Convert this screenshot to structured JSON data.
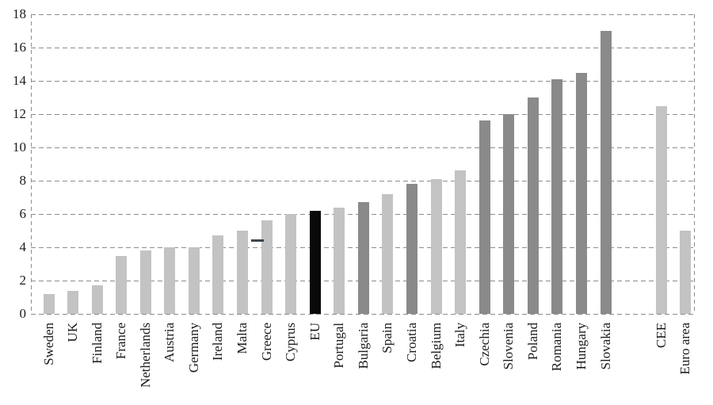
{
  "chart_data": {
    "type": "bar",
    "title": "",
    "xlabel": "",
    "ylabel": "",
    "ylim": [
      0,
      18
    ],
    "yticks": [
      0,
      2,
      4,
      6,
      8,
      10,
      12,
      14,
      16,
      18
    ],
    "grid": "dashed-horizontal-and-border",
    "legend_position": "none",
    "categories": [
      "Sweden",
      "UK",
      "Finland",
      "France",
      "Netherlands",
      "Austria",
      "Germany",
      "Ireland",
      "Malta",
      "Greece",
      "Cyprus",
      "EU",
      "Portugal",
      "Bulgaria",
      "Spain",
      "Croatia",
      "Belgium",
      "Italy",
      "Czechia",
      "Slovenia",
      "Poland",
      "Romania",
      "Hungary",
      "Slovakia",
      "CEE",
      "Euro area"
    ],
    "values": [
      1.2,
      1.4,
      1.7,
      3.5,
      3.8,
      4.0,
      4.0,
      4.7,
      5.0,
      5.6,
      6.0,
      6.2,
      6.4,
      6.7,
      7.2,
      7.8,
      8.1,
      8.6,
      11.6,
      12.0,
      13.0,
      14.1,
      14.5,
      17.0,
      12.5,
      5.0
    ],
    "styles": [
      "light",
      "light",
      "light",
      "light",
      "light",
      "light",
      "light",
      "light",
      "light",
      "light",
      "light",
      "black",
      "light",
      "dark",
      "light",
      "dark",
      "light",
      "light",
      "dark",
      "dark",
      "dark",
      "dark",
      "dark",
      "dark",
      "light",
      "light"
    ],
    "gap_before": {
      "CEE": true
    },
    "marker": {
      "category": "Greece",
      "value": 4.4,
      "shape": "horizontal-dash"
    }
  },
  "colors": {
    "light_bar": "#c3c3c3",
    "dark_bar": "#8a8a8a",
    "black_bar": "#0a0a0a",
    "marker_dash": "#3d464e",
    "gridline": "#8c8c8c",
    "axis_text": "#1c1c1c",
    "background": "#ffffff"
  }
}
